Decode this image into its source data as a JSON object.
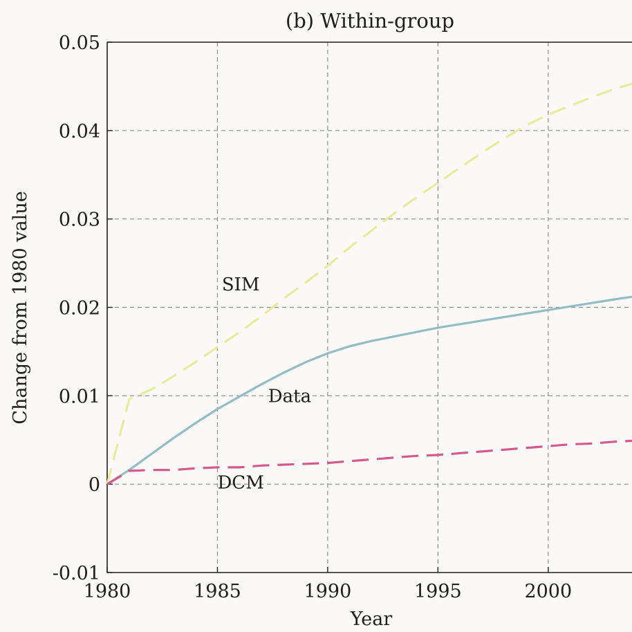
{
  "chart_data": {
    "type": "line",
    "title": "(b) Within-group",
    "xlabel": "Year",
    "ylabel": "Change from 1980 value",
    "xlim": [
      1980,
      2003.8
    ],
    "ylim": [
      -0.01,
      0.05
    ],
    "x_ticks": [
      1980,
      1985,
      1990,
      1995,
      2000
    ],
    "x_tick_labels": [
      "1980",
      "1985",
      "1990",
      "1995",
      "2000"
    ],
    "y_ticks": [
      -0.01,
      0,
      0.01,
      0.02,
      0.03,
      0.04,
      0.05
    ],
    "y_tick_labels": [
      "-0.01",
      "0",
      "0.01",
      "0.02",
      "0.03",
      "0.04",
      "0.05"
    ],
    "grid": true,
    "series": [
      {
        "name": "SIM",
        "color": "#e6ec9a",
        "dash": "dashed",
        "x": [
          1980,
          1981,
          1982,
          1983,
          1984,
          1985,
          1986,
          1987,
          1988,
          1989,
          1990,
          1991,
          1992,
          1993,
          1994,
          1995,
          1996,
          1997,
          1998,
          1999,
          2000,
          2001,
          2002,
          2003,
          2003.8
        ],
        "y": [
          0,
          0.0096,
          0.0107,
          0.0122,
          0.0138,
          0.0155,
          0.0172,
          0.019,
          0.021,
          0.0228,
          0.0247,
          0.0268,
          0.0287,
          0.0306,
          0.0324,
          0.0341,
          0.0358,
          0.0375,
          0.0391,
          0.0406,
          0.0418,
          0.0428,
          0.0438,
          0.0447,
          0.0453
        ]
      },
      {
        "name": "Data",
        "color": "#94bcc4",
        "dash": "solid",
        "x": [
          1980,
          1981,
          1982,
          1983,
          1984,
          1985,
          1986,
          1987,
          1988,
          1989,
          1990,
          1991,
          1992,
          1993,
          1994,
          1995,
          1996,
          1997,
          1998,
          1999,
          2000,
          2001,
          2002,
          2003,
          2003.8
        ],
        "y": [
          0,
          0.0016,
          0.0034,
          0.0052,
          0.0069,
          0.0085,
          0.0099,
          0.0113,
          0.0126,
          0.0138,
          0.0148,
          0.0156,
          0.0162,
          0.0167,
          0.0172,
          0.0177,
          0.0181,
          0.0185,
          0.0189,
          0.0193,
          0.0197,
          0.0201,
          0.0205,
          0.0209,
          0.0212
        ]
      },
      {
        "name": "DCM",
        "color": "#d4598c",
        "dash": "dashed",
        "x": [
          1980,
          1981,
          1982,
          1983,
          1984,
          1985,
          1986,
          1987,
          1988,
          1989,
          1990,
          1991,
          1992,
          1993,
          1994,
          1995,
          1996,
          1997,
          1998,
          1999,
          2000,
          2001,
          2002,
          2003,
          2003.8
        ],
        "y": [
          0,
          0.0015,
          0.0016,
          0.0016,
          0.0018,
          0.0019,
          0.0019,
          0.0021,
          0.0022,
          0.0023,
          0.0024,
          0.0026,
          0.0028,
          0.003,
          0.0032,
          0.0033,
          0.0035,
          0.0037,
          0.0039,
          0.0041,
          0.0043,
          0.0045,
          0.0046,
          0.0048,
          0.0049
        ]
      }
    ],
    "annotations": [
      {
        "text": "SIM",
        "series": "SIM",
        "x": 1985.2,
        "y": 0.0219
      },
      {
        "text": "Data",
        "series": "Data",
        "x": 1987.3,
        "y": 0.0093
      },
      {
        "text": "DCM",
        "series": "DCM",
        "x": 1985.0,
        "y": -0.0005
      }
    ]
  }
}
